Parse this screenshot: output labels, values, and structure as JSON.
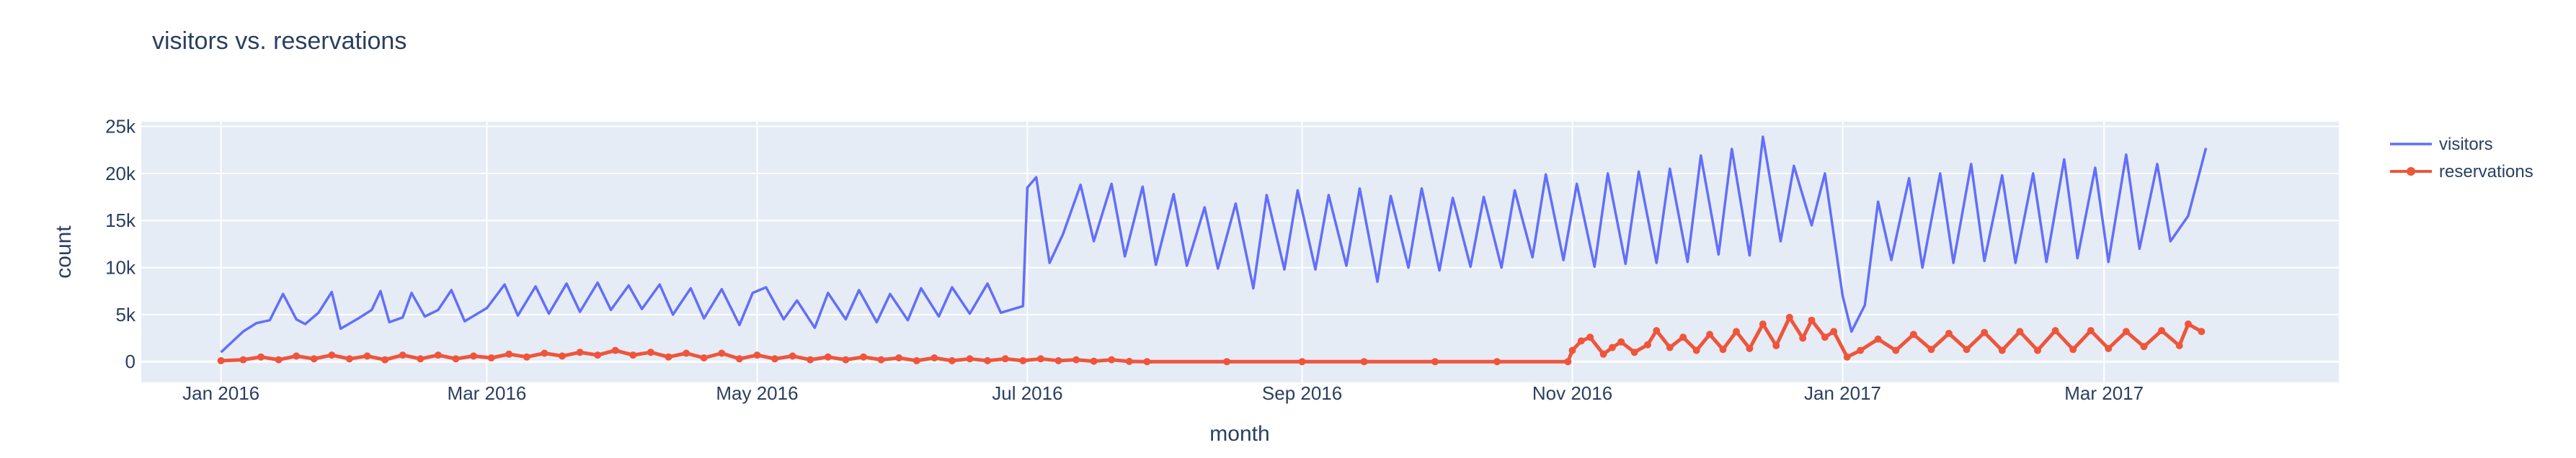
{
  "chart_data": {
    "type": "line",
    "title": "visitors vs. reservations",
    "xlabel": "month",
    "ylabel": "count",
    "x_range": [
      "2015-12-14",
      "2017-04-23"
    ],
    "ylim": [
      -2200,
      25500
    ],
    "grid": true,
    "legend_position": "right",
    "x_ticks": [
      {
        "date": "2016-01-01",
        "label": "Jan 2016"
      },
      {
        "date": "2016-03-01",
        "label": "Mar 2016"
      },
      {
        "date": "2016-05-01",
        "label": "May 2016"
      },
      {
        "date": "2016-07-01",
        "label": "Jul 2016"
      },
      {
        "date": "2016-09-01",
        "label": "Sep 2016"
      },
      {
        "date": "2016-11-01",
        "label": "Nov 2016"
      },
      {
        "date": "2017-01-01",
        "label": "Jan 2017"
      },
      {
        "date": "2017-03-01",
        "label": "Mar 2017"
      }
    ],
    "y_ticks": [
      {
        "value": 0,
        "label": "0"
      },
      {
        "value": 5000,
        "label": "5k"
      },
      {
        "value": 10000,
        "label": "10k"
      },
      {
        "value": 15000,
        "label": "15k"
      },
      {
        "value": 20000,
        "label": "20k"
      },
      {
        "value": 25000,
        "label": "25k"
      }
    ],
    "series": [
      {
        "name": "visitors",
        "color": "#636efa",
        "mode": "lines",
        "points": [
          [
            "2016-01-01",
            1000
          ],
          [
            "2016-01-06",
            3200
          ],
          [
            "2016-01-09",
            4100
          ],
          [
            "2016-01-12",
            4400
          ],
          [
            "2016-01-15",
            7200
          ],
          [
            "2016-01-18",
            4500
          ],
          [
            "2016-01-20",
            4000
          ],
          [
            "2016-01-23",
            5200
          ],
          [
            "2016-01-26",
            7400
          ],
          [
            "2016-01-28",
            3500
          ],
          [
            "2016-02-01",
            4600
          ],
          [
            "2016-02-04",
            5500
          ],
          [
            "2016-02-06",
            7500
          ],
          [
            "2016-02-08",
            4200
          ],
          [
            "2016-02-11",
            4700
          ],
          [
            "2016-02-13",
            7300
          ],
          [
            "2016-02-16",
            4800
          ],
          [
            "2016-02-19",
            5500
          ],
          [
            "2016-02-22",
            7600
          ],
          [
            "2016-02-25",
            4300
          ],
          [
            "2016-03-01",
            5700
          ],
          [
            "2016-03-05",
            8200
          ],
          [
            "2016-03-08",
            4900
          ],
          [
            "2016-03-12",
            8000
          ],
          [
            "2016-03-15",
            5100
          ],
          [
            "2016-03-19",
            8300
          ],
          [
            "2016-03-22",
            5300
          ],
          [
            "2016-03-26",
            8400
          ],
          [
            "2016-03-29",
            5500
          ],
          [
            "2016-04-02",
            8100
          ],
          [
            "2016-04-05",
            5600
          ],
          [
            "2016-04-09",
            8200
          ],
          [
            "2016-04-12",
            5000
          ],
          [
            "2016-04-16",
            7800
          ],
          [
            "2016-04-19",
            4600
          ],
          [
            "2016-04-23",
            7700
          ],
          [
            "2016-04-27",
            3900
          ],
          [
            "2016-04-30",
            7300
          ],
          [
            "2016-05-03",
            7900
          ],
          [
            "2016-05-07",
            4500
          ],
          [
            "2016-05-10",
            6500
          ],
          [
            "2016-05-14",
            3600
          ],
          [
            "2016-05-17",
            7300
          ],
          [
            "2016-05-21",
            4500
          ],
          [
            "2016-05-24",
            7600
          ],
          [
            "2016-05-28",
            4200
          ],
          [
            "2016-05-31",
            7200
          ],
          [
            "2016-06-04",
            4400
          ],
          [
            "2016-06-07",
            7800
          ],
          [
            "2016-06-11",
            4800
          ],
          [
            "2016-06-14",
            7900
          ],
          [
            "2016-06-18",
            5100
          ],
          [
            "2016-06-22",
            8300
          ],
          [
            "2016-06-25",
            5200
          ],
          [
            "2016-06-30",
            5900
          ],
          [
            "2016-07-01",
            18500
          ],
          [
            "2016-07-03",
            19600
          ],
          [
            "2016-07-06",
            10500
          ],
          [
            "2016-07-09",
            13500
          ],
          [
            "2016-07-13",
            18800
          ],
          [
            "2016-07-16",
            12800
          ],
          [
            "2016-07-20",
            18900
          ],
          [
            "2016-07-23",
            11200
          ],
          [
            "2016-07-27",
            18600
          ],
          [
            "2016-07-30",
            10300
          ],
          [
            "2016-08-03",
            17800
          ],
          [
            "2016-08-06",
            10200
          ],
          [
            "2016-08-10",
            16400
          ],
          [
            "2016-08-13",
            9900
          ],
          [
            "2016-08-17",
            16800
          ],
          [
            "2016-08-21",
            7800
          ],
          [
            "2016-08-24",
            17700
          ],
          [
            "2016-08-28",
            9800
          ],
          [
            "2016-08-31",
            18200
          ],
          [
            "2016-09-04",
            9800
          ],
          [
            "2016-09-07",
            17700
          ],
          [
            "2016-09-11",
            10200
          ],
          [
            "2016-09-14",
            18400
          ],
          [
            "2016-09-18",
            8500
          ],
          [
            "2016-09-21",
            17600
          ],
          [
            "2016-09-25",
            10000
          ],
          [
            "2016-09-28",
            18400
          ],
          [
            "2016-10-02",
            9700
          ],
          [
            "2016-10-05",
            17400
          ],
          [
            "2016-10-09",
            10100
          ],
          [
            "2016-10-12",
            17500
          ],
          [
            "2016-10-16",
            10000
          ],
          [
            "2016-10-19",
            18200
          ],
          [
            "2016-10-23",
            11100
          ],
          [
            "2016-10-26",
            19900
          ],
          [
            "2016-10-30",
            10800
          ],
          [
            "2016-11-02",
            18900
          ],
          [
            "2016-11-06",
            10100
          ],
          [
            "2016-11-09",
            20000
          ],
          [
            "2016-11-13",
            10400
          ],
          [
            "2016-11-16",
            20200
          ],
          [
            "2016-11-20",
            10500
          ],
          [
            "2016-11-23",
            20500
          ],
          [
            "2016-11-27",
            10600
          ],
          [
            "2016-11-30",
            21900
          ],
          [
            "2016-12-04",
            11400
          ],
          [
            "2016-12-07",
            22600
          ],
          [
            "2016-12-11",
            11300
          ],
          [
            "2016-12-14",
            23900
          ],
          [
            "2016-12-18",
            12800
          ],
          [
            "2016-12-21",
            20800
          ],
          [
            "2016-12-25",
            14500
          ],
          [
            "2016-12-28",
            20000
          ],
          [
            "2017-01-01",
            7000
          ],
          [
            "2017-01-03",
            3200
          ],
          [
            "2017-01-06",
            6000
          ],
          [
            "2017-01-09",
            17000
          ],
          [
            "2017-01-12",
            10800
          ],
          [
            "2017-01-16",
            19500
          ],
          [
            "2017-01-19",
            10000
          ],
          [
            "2017-01-23",
            20000
          ],
          [
            "2017-01-26",
            10500
          ],
          [
            "2017-01-30",
            21000
          ],
          [
            "2017-02-02",
            10700
          ],
          [
            "2017-02-06",
            19800
          ],
          [
            "2017-02-09",
            10500
          ],
          [
            "2017-02-13",
            20000
          ],
          [
            "2017-02-16",
            10600
          ],
          [
            "2017-02-20",
            21500
          ],
          [
            "2017-02-23",
            11000
          ],
          [
            "2017-02-27",
            20600
          ],
          [
            "2017-03-02",
            10600
          ],
          [
            "2017-03-06",
            22000
          ],
          [
            "2017-03-09",
            12000
          ],
          [
            "2017-03-13",
            21000
          ],
          [
            "2017-03-16",
            12800
          ],
          [
            "2017-03-20",
            15500
          ],
          [
            "2017-03-24",
            22700
          ]
        ]
      },
      {
        "name": "reservations",
        "color": "#ef553b",
        "mode": "lines+markers",
        "points": [
          [
            "2016-01-01",
            100
          ],
          [
            "2016-01-06",
            200
          ],
          [
            "2016-01-10",
            500
          ],
          [
            "2016-01-14",
            200
          ],
          [
            "2016-01-18",
            600
          ],
          [
            "2016-01-22",
            300
          ],
          [
            "2016-01-26",
            700
          ],
          [
            "2016-01-30",
            300
          ],
          [
            "2016-02-03",
            600
          ],
          [
            "2016-02-07",
            200
          ],
          [
            "2016-02-11",
            700
          ],
          [
            "2016-02-15",
            300
          ],
          [
            "2016-02-19",
            700
          ],
          [
            "2016-02-23",
            300
          ],
          [
            "2016-02-27",
            600
          ],
          [
            "2016-03-02",
            400
          ],
          [
            "2016-03-06",
            800
          ],
          [
            "2016-03-10",
            500
          ],
          [
            "2016-03-14",
            900
          ],
          [
            "2016-03-18",
            600
          ],
          [
            "2016-03-22",
            1000
          ],
          [
            "2016-03-26",
            700
          ],
          [
            "2016-03-30",
            1200
          ],
          [
            "2016-04-03",
            700
          ],
          [
            "2016-04-07",
            1000
          ],
          [
            "2016-04-11",
            500
          ],
          [
            "2016-04-15",
            900
          ],
          [
            "2016-04-19",
            400
          ],
          [
            "2016-04-23",
            900
          ],
          [
            "2016-04-27",
            300
          ],
          [
            "2016-05-01",
            700
          ],
          [
            "2016-05-05",
            300
          ],
          [
            "2016-05-09",
            600
          ],
          [
            "2016-05-13",
            200
          ],
          [
            "2016-05-17",
            500
          ],
          [
            "2016-05-21",
            200
          ],
          [
            "2016-05-25",
            500
          ],
          [
            "2016-05-29",
            200
          ],
          [
            "2016-06-02",
            400
          ],
          [
            "2016-06-06",
            100
          ],
          [
            "2016-06-10",
            400
          ],
          [
            "2016-06-14",
            100
          ],
          [
            "2016-06-18",
            300
          ],
          [
            "2016-06-22",
            100
          ],
          [
            "2016-06-26",
            300
          ],
          [
            "2016-06-30",
            100
          ],
          [
            "2016-07-04",
            300
          ],
          [
            "2016-07-08",
            100
          ],
          [
            "2016-07-12",
            200
          ],
          [
            "2016-07-16",
            50
          ],
          [
            "2016-07-20",
            200
          ],
          [
            "2016-07-24",
            30
          ],
          [
            "2016-07-28",
            0
          ],
          [
            "2016-08-15",
            0
          ],
          [
            "2016-09-01",
            0
          ],
          [
            "2016-09-15",
            0
          ],
          [
            "2016-10-01",
            0
          ],
          [
            "2016-10-15",
            0
          ],
          [
            "2016-10-31",
            0
          ],
          [
            "2016-11-01",
            1200
          ],
          [
            "2016-11-03",
            2200
          ],
          [
            "2016-11-05",
            2600
          ],
          [
            "2016-11-08",
            800
          ],
          [
            "2016-11-10",
            1500
          ],
          [
            "2016-11-12",
            2100
          ],
          [
            "2016-11-15",
            1000
          ],
          [
            "2016-11-18",
            1800
          ],
          [
            "2016-11-20",
            3300
          ],
          [
            "2016-11-23",
            1500
          ],
          [
            "2016-11-26",
            2600
          ],
          [
            "2016-11-29",
            1200
          ],
          [
            "2016-12-02",
            2900
          ],
          [
            "2016-12-05",
            1300
          ],
          [
            "2016-12-08",
            3200
          ],
          [
            "2016-12-11",
            1400
          ],
          [
            "2016-12-14",
            4000
          ],
          [
            "2016-12-17",
            1700
          ],
          [
            "2016-12-20",
            4700
          ],
          [
            "2016-12-23",
            2500
          ],
          [
            "2016-12-25",
            4400
          ],
          [
            "2016-12-28",
            2600
          ],
          [
            "2016-12-30",
            3200
          ],
          [
            "2017-01-02",
            500
          ],
          [
            "2017-01-05",
            1200
          ],
          [
            "2017-01-09",
            2400
          ],
          [
            "2017-01-13",
            1200
          ],
          [
            "2017-01-17",
            2900
          ],
          [
            "2017-01-21",
            1300
          ],
          [
            "2017-01-25",
            3000
          ],
          [
            "2017-01-29",
            1300
          ],
          [
            "2017-02-02",
            3100
          ],
          [
            "2017-02-06",
            1200
          ],
          [
            "2017-02-10",
            3200
          ],
          [
            "2017-02-14",
            1200
          ],
          [
            "2017-02-18",
            3300
          ],
          [
            "2017-02-22",
            1300
          ],
          [
            "2017-02-26",
            3300
          ],
          [
            "2017-03-02",
            1400
          ],
          [
            "2017-03-06",
            3200
          ],
          [
            "2017-03-10",
            1600
          ],
          [
            "2017-03-14",
            3300
          ],
          [
            "2017-03-18",
            1700
          ],
          [
            "2017-03-20",
            4000
          ],
          [
            "2017-03-23",
            3200
          ]
        ]
      }
    ]
  }
}
